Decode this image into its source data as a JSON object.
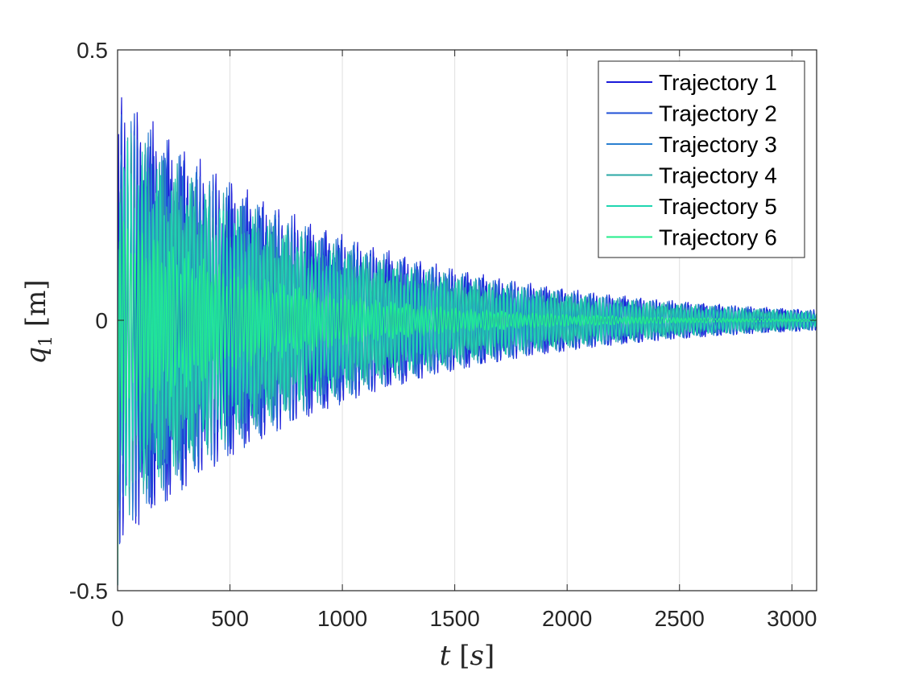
{
  "chart_data": {
    "type": "line",
    "xlabel": "t [s]",
    "ylabel": "q1 [m]",
    "xlim": [
      0,
      3110
    ],
    "ylim": [
      -0.5,
      0.5
    ],
    "xticks": [
      0,
      500,
      1000,
      1500,
      2000,
      2500,
      3000
    ],
    "xtick_labels": [
      "0",
      "500",
      "1000",
      "1500",
      "2000",
      "2500",
      "3000"
    ],
    "yticks": [
      -0.5,
      0,
      0.5
    ],
    "ytick_labels": [
      "-0.5",
      "0",
      "0.5"
    ],
    "grid": "x-only",
    "legend_position": "top-right",
    "series": [
      {
        "name": "Trajectory 1",
        "color": "#1a1ad9",
        "amplitude_start": 0.43,
        "decay_time": 1000
      },
      {
        "name": "Trajectory 2",
        "color": "#1f4fd6",
        "amplitude_start": 0.42,
        "decay_time": 1000
      },
      {
        "name": "Trajectory 3",
        "color": "#2a7fd0",
        "amplitude_start": 0.4,
        "decay_time": 1000
      },
      {
        "name": "Trajectory 4",
        "color": "#2aa7a5",
        "amplitude_start": 0.38,
        "decay_time": 1000
      },
      {
        "name": "Trajectory 5",
        "color": "#1fd6b0",
        "amplitude_start": 0.35,
        "decay_time": 1000
      },
      {
        "name": "Trajectory 6",
        "color": "#22ee8a",
        "amplitude_start": 0.2,
        "decay_time": 700
      }
    ]
  },
  "colors": {
    "axis": "#262626",
    "grid": "#dfdfdf",
    "background": "#ffffff"
  }
}
